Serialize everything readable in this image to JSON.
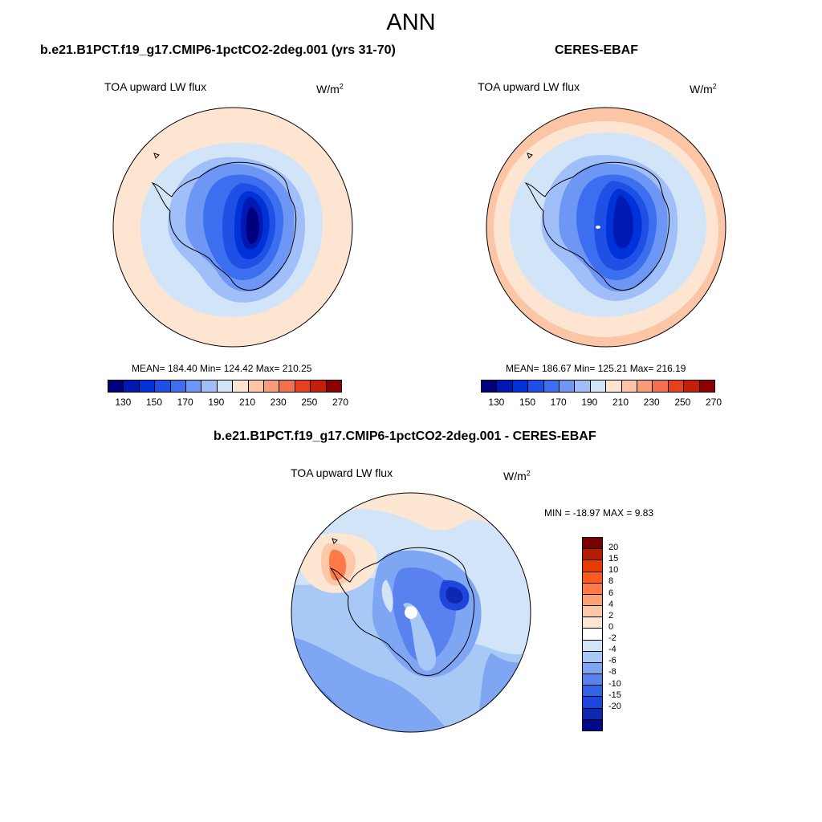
{
  "title": "ANN",
  "panels": [
    {
      "title": "b.e21.B1PCT.f19_g17.CMIP6-1pctCO2-2deg.001 (yrs 31-70)",
      "variable": "TOA upward LW flux",
      "units_base": "W/m",
      "units_exp": "2",
      "stats": "MEAN= 184.40  Min= 124.42  Max= 210.25"
    },
    {
      "title": "CERES-EBAF",
      "variable": "TOA upward LW flux",
      "units_base": "W/m",
      "units_exp": "2",
      "stats": "MEAN= 186.67  Min= 125.21  Max= 216.19"
    },
    {
      "title": "b.e21.B1PCT.f19_g17.CMIP6-1pctCO2-2deg.001 - CERES-EBAF",
      "variable": "TOA upward LW flux",
      "units_base": "W/m",
      "units_exp": "2",
      "stats": "MIN = -18.97 MAX =   9.83"
    }
  ],
  "colorbar_main": {
    "colors": [
      "#00007f",
      "#0019b3",
      "#0032d9",
      "#1e50e6",
      "#3c6ef0",
      "#6e96f5",
      "#a0bef7",
      "#d2e4f7",
      "#fde5d2",
      "#fbc5a6",
      "#f79e78",
      "#f37050",
      "#e6411e",
      "#c31e0a",
      "#8c0000"
    ],
    "tick_labels": [
      "130",
      "150",
      "170",
      "190",
      "210",
      "230",
      "250",
      "270"
    ]
  },
  "colorbar_diff": {
    "colors": [
      "#7a0000",
      "#b41e00",
      "#e63c00",
      "#ff5a1e",
      "#ff7a46",
      "#fba078",
      "#fbc8a8",
      "#fde6d2",
      "#ffffff",
      "#d2e4f7",
      "#a8c8f5",
      "#7ea6f2",
      "#5a82ee",
      "#3264e8",
      "#1e46dc",
      "#0f28b4",
      "#00088c"
    ],
    "labels": [
      "20",
      "15",
      "10",
      "8",
      "6",
      "4",
      "2",
      "0",
      "-2",
      "-4",
      "-6",
      "-8",
      "-10",
      "-15",
      "-20"
    ]
  }
}
